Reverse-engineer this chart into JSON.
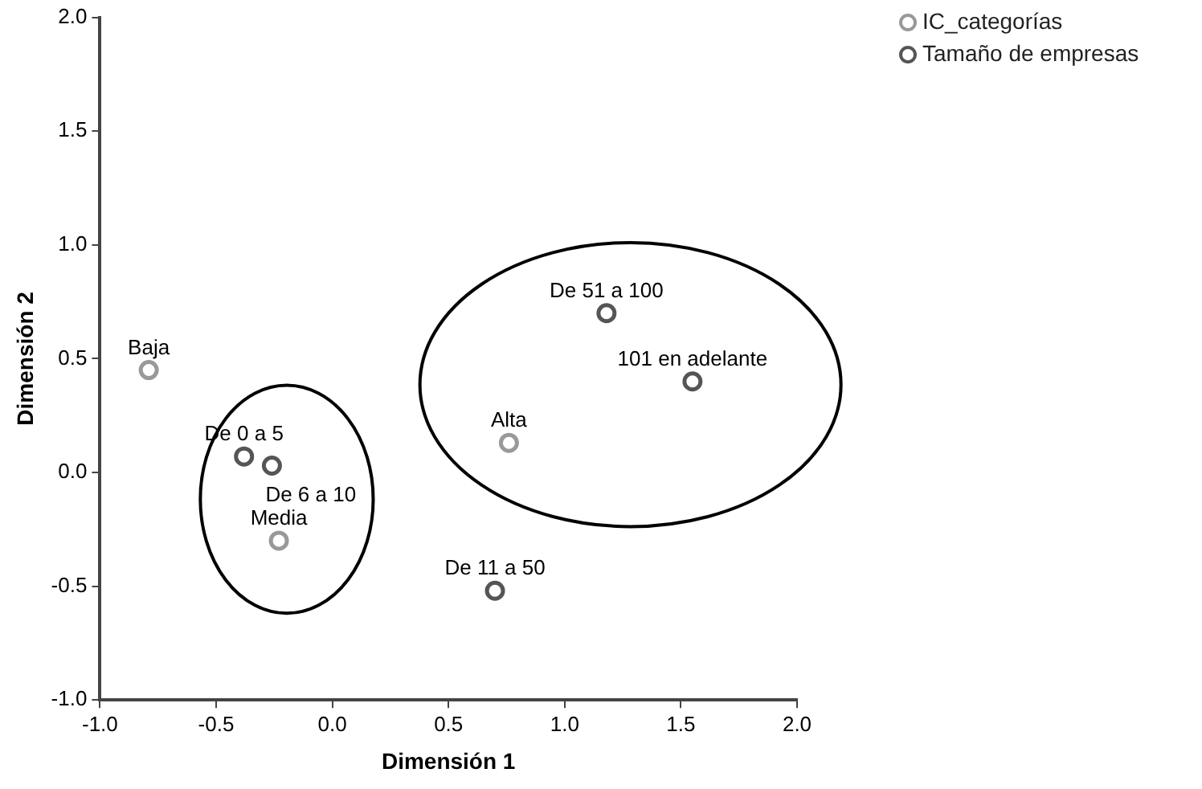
{
  "chart_data": {
    "type": "scatter",
    "xlabel": "Dimensión 1",
    "ylabel": "Dimensión 2",
    "xlim": [
      -1,
      2
    ],
    "ylim": [
      -1,
      2
    ],
    "xticks": [
      {
        "value": -1,
        "label": "-1.0"
      },
      {
        "value": -0.5,
        "label": "-0.5"
      },
      {
        "value": 0,
        "label": "0.0"
      },
      {
        "value": 0.5,
        "label": "0.5"
      },
      {
        "value": 1,
        "label": "1.0"
      },
      {
        "value": 1.5,
        "label": "1.5"
      },
      {
        "value": 2,
        "label": "2.0"
      }
    ],
    "yticks": [
      {
        "value": -1,
        "label": "-1.0"
      },
      {
        "value": -0.5,
        "label": "-0.5"
      },
      {
        "value": 0,
        "label": "0.0"
      },
      {
        "value": 0.5,
        "label": "0.5"
      },
      {
        "value": 1,
        "label": "1.0"
      },
      {
        "value": 1.5,
        "label": "1.5"
      },
      {
        "value": 2,
        "label": "2.0"
      }
    ],
    "series": [
      {
        "name": "IC_categorías",
        "color": "#999999",
        "x": [
          -0.79,
          -0.23,
          0.76
        ],
        "values": [
          0.45,
          -0.3,
          0.13
        ]
      },
      {
        "name": "Tamaño de empresas",
        "color": "#555555",
        "x": [
          -0.38,
          -0.26,
          0.7,
          1.18,
          1.55
        ],
        "values": [
          0.07,
          0.03,
          -0.52,
          0.7,
          0.4
        ]
      }
    ],
    "annotations": [
      {
        "text": "Baja",
        "x": -0.79,
        "y": 0.45
      },
      {
        "text": "Media",
        "x": -0.23,
        "y": -0.3
      },
      {
        "text": "Alta",
        "x": 0.76,
        "y": 0.13
      },
      {
        "text": "De 0 a 5",
        "x": -0.38,
        "y": 0.07
      },
      {
        "text": "De 6 a 10",
        "x": -0.26,
        "y": 0.03
      },
      {
        "text": "De 11 a 50",
        "x": 0.7,
        "y": -0.52
      },
      {
        "text": "De 51 a 100",
        "x": 1.18,
        "y": 0.7
      },
      {
        "text": "101 en adelante",
        "x": 1.55,
        "y": 0.4
      }
    ],
    "marker": "circle",
    "grid": false,
    "legend": "top right"
  }
}
